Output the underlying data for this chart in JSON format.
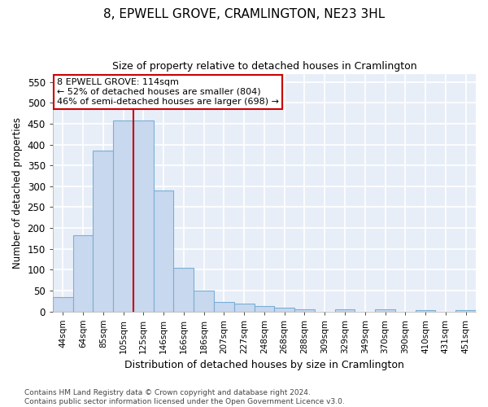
{
  "title_line1": "8, EPWELL GROVE, CRAMLINGTON, NE23 3HL",
  "title_line2": "Size of property relative to detached houses in Cramlington",
  "xlabel": "Distribution of detached houses by size in Cramlington",
  "ylabel": "Number of detached properties",
  "bar_labels": [
    "44sqm",
    "64sqm",
    "85sqm",
    "105sqm",
    "125sqm",
    "146sqm",
    "166sqm",
    "186sqm",
    "207sqm",
    "227sqm",
    "248sqm",
    "268sqm",
    "288sqm",
    "309sqm",
    "329sqm",
    "349sqm",
    "370sqm",
    "390sqm",
    "410sqm",
    "431sqm",
    "451sqm"
  ],
  "bar_values": [
    35,
    183,
    385,
    457,
    457,
    290,
    104,
    49,
    22,
    19,
    13,
    9,
    5,
    0,
    4,
    0,
    4,
    0,
    3,
    0,
    3
  ],
  "bar_color": "#c8d8ee",
  "bar_edge_color": "#7aafd4",
  "fig_background": "#ffffff",
  "plot_background": "#e8eef8",
  "grid_color": "#ffffff",
  "vline_color": "#cc0000",
  "vline_x_index": 4,
  "annotation_text": "8 EPWELL GROVE: 114sqm\n← 52% of detached houses are smaller (804)\n46% of semi-detached houses are larger (698) →",
  "annotation_box_color": "#ffffff",
  "annotation_box_edge": "#cc0000",
  "ylim": [
    0,
    570
  ],
  "yticks": [
    0,
    50,
    100,
    150,
    200,
    250,
    300,
    350,
    400,
    450,
    500,
    550
  ],
  "footer_line1": "Contains HM Land Registry data © Crown copyright and database right 2024.",
  "footer_line2": "Contains public sector information licensed under the Open Government Licence v3.0."
}
